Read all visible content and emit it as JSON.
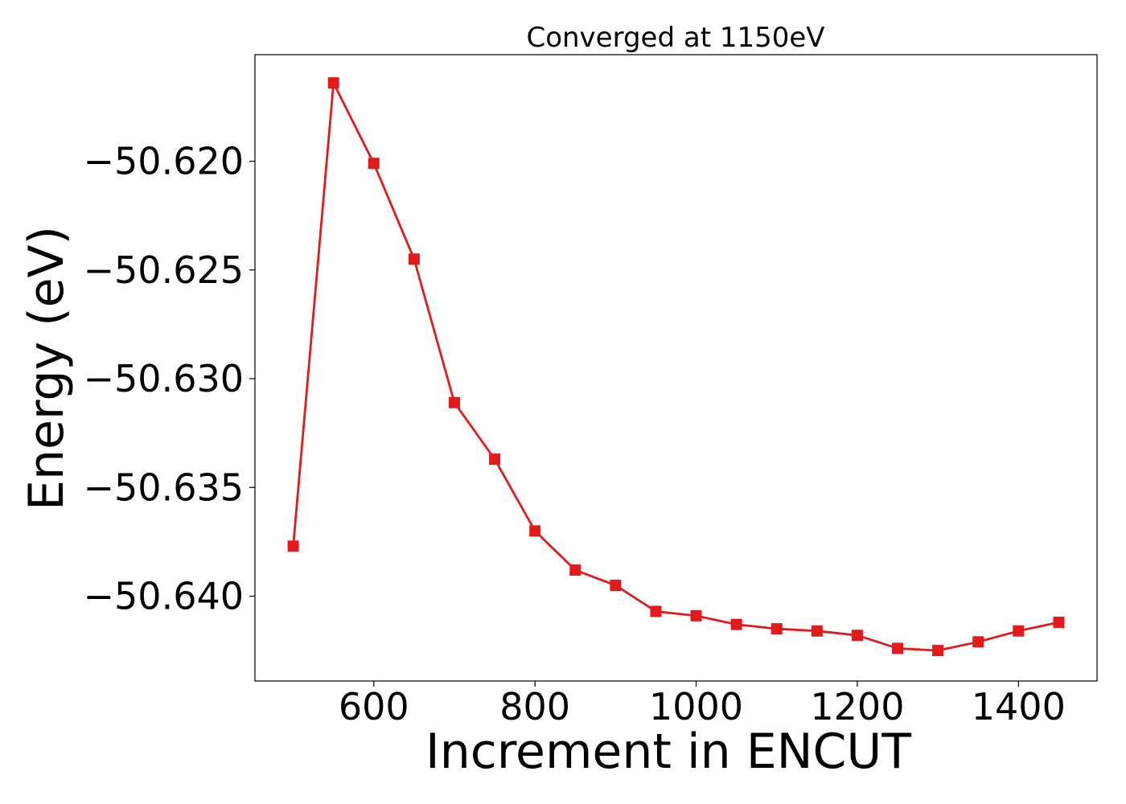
{
  "chart_data": {
    "type": "line",
    "title": "Converged at 1150eV",
    "xlabel": "Increment in ENCUT",
    "ylabel": "Energy (eV)",
    "xlim": [
      452.5,
      1497.5
    ],
    "ylim": [
      -50.6439,
      -50.6151
    ],
    "x_ticks": [
      600,
      800,
      1000,
      1200,
      1400
    ],
    "x_tick_labels": [
      "600",
      "800",
      "1000",
      "1200",
      "1400"
    ],
    "y_ticks": [
      -50.62,
      -50.625,
      -50.63,
      -50.635,
      -50.64
    ],
    "y_tick_labels": [
      "−50.620",
      "−50.625",
      "−50.630",
      "−50.635",
      "−50.640"
    ],
    "grid": false,
    "series": [
      {
        "color": "#e31a1c",
        "marker": "square",
        "x": [
          500,
          550,
          600,
          650,
          700,
          750,
          800,
          850,
          900,
          950,
          1000,
          1050,
          1100,
          1150,
          1200,
          1250,
          1300,
          1350,
          1400,
          1450
        ],
        "y": [
          -50.6377,
          -50.6164,
          -50.6201,
          -50.6245,
          -50.6311,
          -50.6337,
          -50.637,
          -50.6388,
          -50.6395,
          -50.6407,
          -50.6409,
          -50.6413,
          -50.6415,
          -50.6416,
          -50.6418,
          -50.6424,
          -50.6425,
          -50.6421,
          -50.6416,
          -50.6412
        ]
      }
    ]
  }
}
